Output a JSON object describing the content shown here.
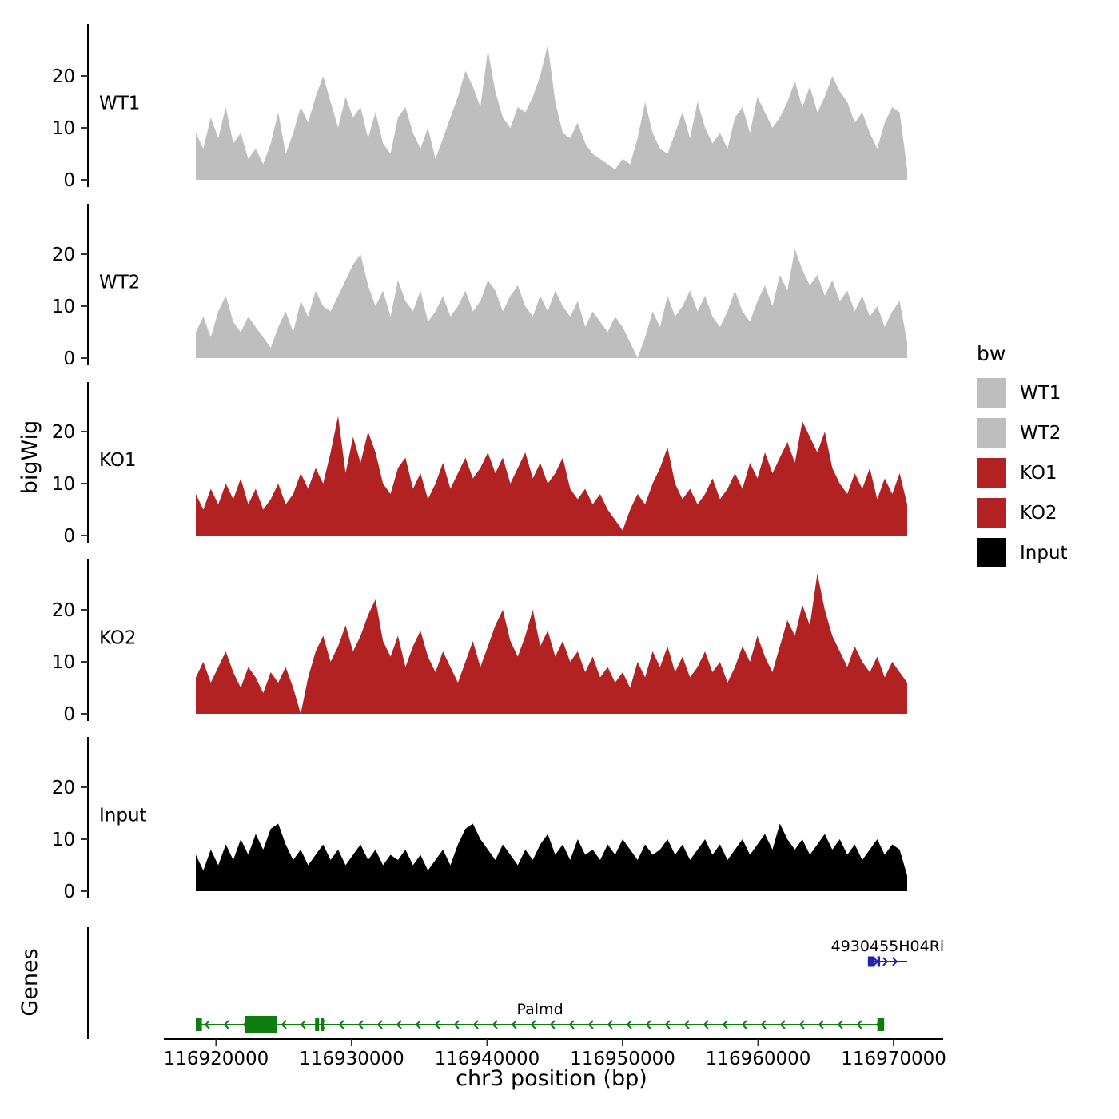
{
  "figure": {
    "y_axis_title_bigwig": "bigWig",
    "y_axis_title_genes": "Genes",
    "x_axis_title": "chr3 position (bp)",
    "legend": {
      "title": "bw",
      "entries": [
        {
          "label": "WT1",
          "color": "#bebebe"
        },
        {
          "label": "WT2",
          "color": "#bebebe"
        },
        {
          "label": "KO1",
          "color": "#b22222"
        },
        {
          "label": "KO2",
          "color": "#b22222"
        },
        {
          "label": "Input",
          "color": "#000000"
        }
      ]
    }
  },
  "chart_data": {
    "type": "area",
    "title": "",
    "xlabel": "chr3 position (bp)",
    "ylabel": "bigWig",
    "legend_title": "bw",
    "legend_position": "right",
    "grid": false,
    "x_domain": [
      116918500,
      116971000
    ],
    "x_ticks": [
      116920000,
      116930000,
      116940000,
      116950000,
      116960000,
      116970000
    ],
    "y_ticks": [
      0,
      10,
      20
    ],
    "y_domain": [
      0,
      28
    ],
    "sampling_note": "values evenly spaced across x_domain, approx every 550 bp",
    "tracks": [
      {
        "name": "WT1",
        "color": "#bebebe",
        "values": [
          9,
          6,
          12,
          8,
          14,
          7,
          9,
          4,
          6,
          3,
          7,
          13,
          5,
          9,
          14,
          11,
          16,
          20,
          15,
          10,
          16,
          12,
          14,
          8,
          13,
          7,
          5,
          12,
          14,
          9,
          6,
          10,
          4,
          8,
          12,
          16,
          21,
          18,
          14,
          25,
          17,
          12,
          10,
          14,
          13,
          16,
          20,
          26,
          15,
          9,
          8,
          11,
          7,
          5,
          4,
          3,
          2,
          4,
          3,
          8,
          15,
          9,
          6,
          5,
          9,
          13,
          8,
          15,
          10,
          7,
          9,
          6,
          12,
          14,
          9,
          16,
          13,
          10,
          12,
          15,
          19,
          14,
          18,
          13,
          16,
          20,
          17,
          15,
          11,
          13,
          9,
          6,
          11,
          14,
          13,
          2
        ]
      },
      {
        "name": "WT2",
        "color": "#bebebe",
        "values": [
          5,
          8,
          4,
          9,
          12,
          7,
          5,
          8,
          6,
          4,
          2,
          6,
          9,
          5,
          11,
          8,
          13,
          10,
          9,
          12,
          15,
          18,
          20,
          14,
          10,
          13,
          8,
          15,
          11,
          9,
          13,
          7,
          9,
          12,
          8,
          10,
          13,
          9,
          11,
          15,
          13,
          9,
          12,
          14,
          10,
          8,
          12,
          9,
          13,
          10,
          8,
          11,
          6,
          9,
          7,
          5,
          8,
          6,
          3,
          0,
          4,
          9,
          6,
          12,
          8,
          10,
          13,
          9,
          12,
          8,
          6,
          9,
          13,
          9,
          7,
          11,
          14,
          10,
          16,
          13,
          21,
          17,
          14,
          16,
          12,
          15,
          11,
          13,
          9,
          12,
          8,
          10,
          6,
          9,
          11,
          3
        ]
      },
      {
        "name": "KO1",
        "color": "#b22222",
        "values": [
          8,
          5,
          9,
          6,
          10,
          7,
          11,
          6,
          9,
          5,
          7,
          10,
          6,
          8,
          12,
          9,
          13,
          10,
          16,
          23,
          12,
          19,
          14,
          20,
          16,
          10,
          8,
          13,
          15,
          9,
          12,
          7,
          10,
          14,
          9,
          12,
          15,
          11,
          13,
          16,
          12,
          15,
          10,
          13,
          16,
          11,
          14,
          10,
          12,
          15,
          9,
          7,
          9,
          6,
          8,
          5,
          3,
          1,
          5,
          8,
          6,
          10,
          13,
          17,
          10,
          7,
          9,
          6,
          8,
          11,
          7,
          9,
          12,
          9,
          14,
          11,
          16,
          12,
          15,
          18,
          14,
          22,
          19,
          16,
          20,
          13,
          10,
          8,
          12,
          9,
          13,
          7,
          11,
          8,
          12,
          6
        ]
      },
      {
        "name": "KO2",
        "color": "#b22222",
        "values": [
          7,
          10,
          6,
          9,
          12,
          8,
          5,
          9,
          7,
          4,
          8,
          6,
          9,
          5,
          0,
          7,
          12,
          15,
          10,
          13,
          17,
          12,
          15,
          19,
          22,
          14,
          11,
          15,
          9,
          13,
          16,
          11,
          8,
          12,
          9,
          6,
          10,
          14,
          9,
          13,
          17,
          20,
          14,
          11,
          15,
          20,
          13,
          16,
          11,
          14,
          10,
          12,
          8,
          11,
          7,
          9,
          6,
          8,
          5,
          10,
          7,
          12,
          9,
          13,
          8,
          11,
          7,
          9,
          12,
          8,
          10,
          6,
          9,
          13,
          10,
          15,
          11,
          8,
          13,
          18,
          15,
          21,
          17,
          27,
          20,
          15,
          12,
          9,
          13,
          10,
          8,
          11,
          7,
          10,
          8,
          6
        ]
      },
      {
        "name": "Input",
        "color": "#000000",
        "values": [
          7,
          4,
          8,
          5,
          9,
          6,
          10,
          7,
          11,
          8,
          12,
          13,
          9,
          6,
          8,
          5,
          7,
          9,
          6,
          8,
          5,
          7,
          9,
          6,
          8,
          5,
          7,
          6,
          8,
          5,
          7,
          4,
          6,
          8,
          5,
          9,
          12,
          13,
          10,
          8,
          6,
          9,
          7,
          5,
          8,
          6,
          9,
          11,
          7,
          9,
          6,
          10,
          7,
          8,
          6,
          9,
          7,
          10,
          8,
          6,
          9,
          7,
          8,
          10,
          7,
          9,
          6,
          8,
          10,
          7,
          9,
          6,
          8,
          10,
          7,
          9,
          11,
          8,
          13,
          10,
          8,
          10,
          7,
          9,
          11,
          8,
          10,
          7,
          9,
          6,
          8,
          10,
          7,
          9,
          8,
          3
        ]
      }
    ],
    "genes": [
      {
        "name": "4930455H04Ri",
        "strand": "+",
        "color": "#2222aa",
        "start": 116968100,
        "end": 116971000,
        "exons": [
          [
            116968100,
            116968600,
            13
          ],
          [
            116968800,
            116969000,
            13
          ]
        ]
      },
      {
        "name": "Palmd",
        "strand": "-",
        "color": "#0f7d0f",
        "start": 116918500,
        "end": 116969300,
        "exons": [
          [
            116918500,
            116918950,
            16
          ],
          [
            116922100,
            116924500,
            22
          ],
          [
            116927300,
            116927600,
            16
          ],
          [
            116927700,
            116927950,
            16
          ],
          [
            116968800,
            116969300,
            16
          ]
        ]
      }
    ]
  }
}
